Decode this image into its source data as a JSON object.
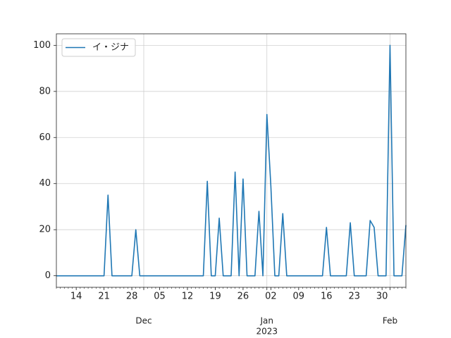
{
  "chart_data": {
    "type": "line",
    "x": [
      "2022-11-09",
      "2022-11-10",
      "2022-11-11",
      "2022-11-12",
      "2022-11-13",
      "2022-11-14",
      "2022-11-15",
      "2022-11-16",
      "2022-11-17",
      "2022-11-18",
      "2022-11-19",
      "2022-11-20",
      "2022-11-21",
      "2022-11-22",
      "2022-11-23",
      "2022-11-24",
      "2022-11-25",
      "2022-11-26",
      "2022-11-27",
      "2022-11-28",
      "2022-11-29",
      "2022-11-30",
      "2022-12-01",
      "2022-12-02",
      "2022-12-03",
      "2022-12-04",
      "2022-12-05",
      "2022-12-06",
      "2022-12-07",
      "2022-12-08",
      "2022-12-09",
      "2022-12-10",
      "2022-12-11",
      "2022-12-12",
      "2022-12-13",
      "2022-12-14",
      "2022-12-15",
      "2022-12-16",
      "2022-12-17",
      "2022-12-18",
      "2022-12-19",
      "2022-12-20",
      "2022-12-21",
      "2022-12-22",
      "2022-12-23",
      "2022-12-24",
      "2022-12-25",
      "2022-12-26",
      "2022-12-27",
      "2022-12-28",
      "2022-12-29",
      "2022-12-30",
      "2022-12-31",
      "2023-01-01",
      "2023-01-02",
      "2023-01-03",
      "2023-01-04",
      "2023-01-05",
      "2023-01-06",
      "2023-01-07",
      "2023-01-08",
      "2023-01-09",
      "2023-01-10",
      "2023-01-11",
      "2023-01-12",
      "2023-01-13",
      "2023-01-14",
      "2023-01-15",
      "2023-01-16",
      "2023-01-17",
      "2023-01-18",
      "2023-01-19",
      "2023-01-20",
      "2023-01-21",
      "2023-01-22",
      "2023-01-23",
      "2023-01-24",
      "2023-01-25",
      "2023-01-26",
      "2023-01-27",
      "2023-01-28",
      "2023-01-29",
      "2023-01-30",
      "2023-01-31",
      "2023-02-01",
      "2023-02-02",
      "2023-02-03",
      "2023-02-04",
      "2023-02-05"
    ],
    "series": [
      {
        "name": "イ・ジナ",
        "color": "#1f77b4",
        "values": [
          0,
          0,
          0,
          0,
          0,
          0,
          0,
          0,
          0,
          0,
          0,
          0,
          0,
          35,
          0,
          0,
          0,
          0,
          0,
          0,
          20,
          0,
          0,
          0,
          0,
          0,
          0,
          0,
          0,
          0,
          0,
          0,
          0,
          0,
          0,
          0,
          0,
          0,
          41,
          0,
          0,
          25,
          0,
          0,
          0,
          45,
          0,
          42,
          0,
          0,
          0,
          28,
          0,
          70,
          39,
          0,
          0,
          27,
          0,
          0,
          0,
          0,
          0,
          0,
          0,
          0,
          0,
          0,
          21,
          0,
          0,
          0,
          0,
          0,
          23,
          0,
          0,
          0,
          0,
          24,
          21,
          0,
          0,
          0,
          100,
          0,
          0,
          0,
          22
        ]
      }
    ],
    "xlim": [
      "2022-11-09",
      "2023-02-05"
    ],
    "xticks": [
      {
        "value": "2022-12-01",
        "label": "Dec"
      },
      {
        "value": "2023-01-01",
        "label": "Jan"
      },
      {
        "value": "2023-02-01",
        "label": "Feb"
      }
    ],
    "xticks_minor": [
      {
        "value": "2022-11-14",
        "label": "14"
      },
      {
        "value": "2022-11-21",
        "label": "21"
      },
      {
        "value": "2022-11-28",
        "label": "28"
      },
      {
        "value": "2022-12-05",
        "label": "05"
      },
      {
        "value": "2022-12-12",
        "label": "12"
      },
      {
        "value": "2022-12-19",
        "label": "19"
      },
      {
        "value": "2022-12-26",
        "label": "26"
      },
      {
        "value": "2023-01-02",
        "label": "02"
      },
      {
        "value": "2023-01-09",
        "label": "09"
      },
      {
        "value": "2023-01-16",
        "label": "16"
      },
      {
        "value": "2023-01-23",
        "label": "23"
      },
      {
        "value": "2023-01-30",
        "label": "30"
      }
    ],
    "x_offset_label": {
      "value": "2023-01-01",
      "label": "2023"
    },
    "ylim": [
      -5,
      105
    ],
    "yticks": [
      0,
      20,
      40,
      60,
      80,
      100
    ],
    "grid": true,
    "legend": "upper left"
  }
}
